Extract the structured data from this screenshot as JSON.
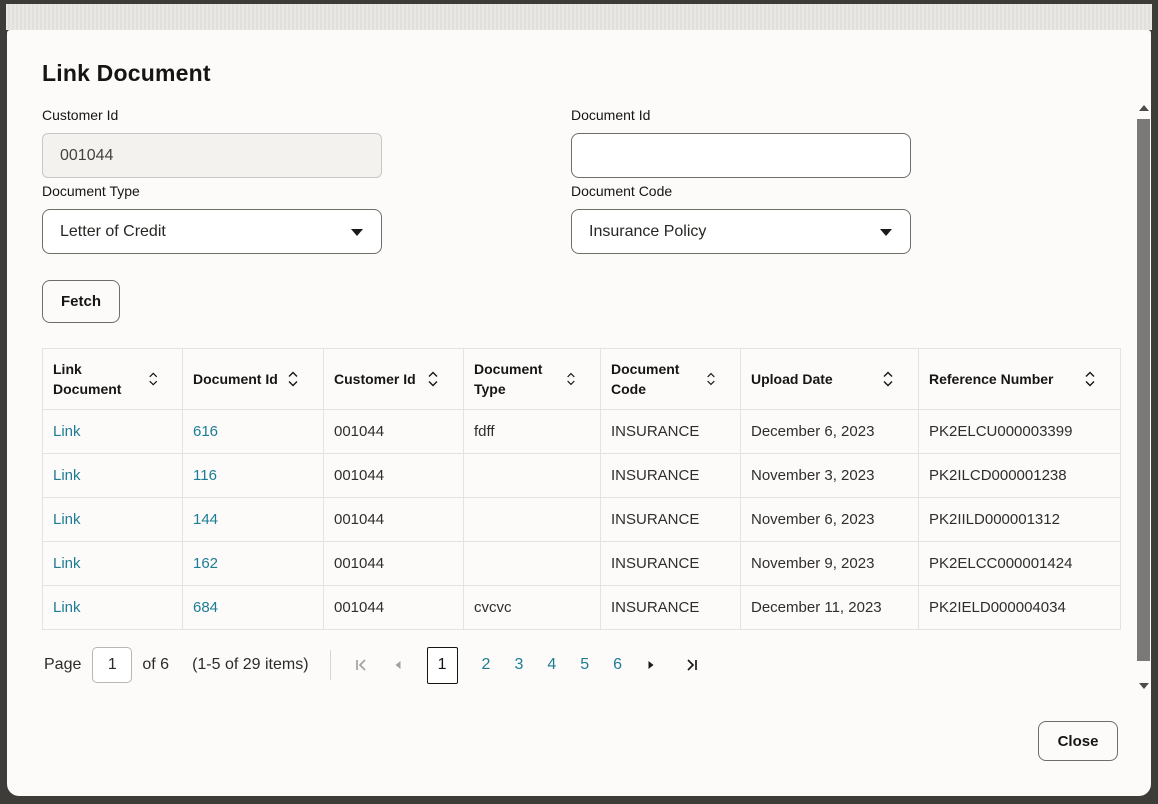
{
  "dialog": {
    "title": "Link Document",
    "close_label": "Close"
  },
  "form": {
    "customer_id": {
      "label": "Customer Id",
      "value": "001044"
    },
    "document_id": {
      "label": "Document Id",
      "value": ""
    },
    "document_type": {
      "label": "Document Type",
      "value": "Letter of Credit"
    },
    "document_code": {
      "label": "Document Code",
      "value": "Insurance Policy"
    },
    "fetch_label": "Fetch"
  },
  "table": {
    "columns": [
      "Link Document",
      "Document Id",
      "Customer Id",
      "Document Type",
      "Document Code",
      "Upload Date",
      "Reference Number"
    ],
    "rows": [
      [
        "Link",
        "616",
        "001044",
        "fdff",
        "INSURANCE",
        "December 6, 2023",
        "PK2ELCU000003399"
      ],
      [
        "Link",
        "116",
        "001044",
        "",
        "INSURANCE",
        "November 3, 2023",
        "PK2ILCD000001238"
      ],
      [
        "Link",
        "144",
        "001044",
        "",
        "INSURANCE",
        "November 6, 2023",
        "PK2IILD000001312"
      ],
      [
        "Link",
        "162",
        "001044",
        "",
        "INSURANCE",
        "November 9, 2023",
        "PK2ELCC000001424"
      ],
      [
        "Link",
        "684",
        "001044",
        "cvcvc",
        "INSURANCE",
        "December 11, 2023",
        "PK2IELD000004034"
      ]
    ]
  },
  "pagination": {
    "page_label": "Page",
    "current_page": "1",
    "of_text": "of 6",
    "items_summary": "(1-5 of 29 items)",
    "pages": [
      "1",
      "2",
      "3",
      "4",
      "5",
      "6"
    ]
  },
  "icons": {
    "sort": "sort-updown-icon",
    "dropdown": "chevron-down-icon",
    "first_page": "first-page-icon",
    "previous_page": "previous-page-icon",
    "next_page": "next-page-icon",
    "last_page": "last-page-icon",
    "scroll_up": "scroll-up-icon",
    "scroll_down": "scroll-down-icon"
  },
  "colors": {
    "link": "#1d7c93",
    "text": "#161513",
    "disabled_nav": "#a3a19d",
    "scrollbar_thumb": "#7b7977"
  }
}
